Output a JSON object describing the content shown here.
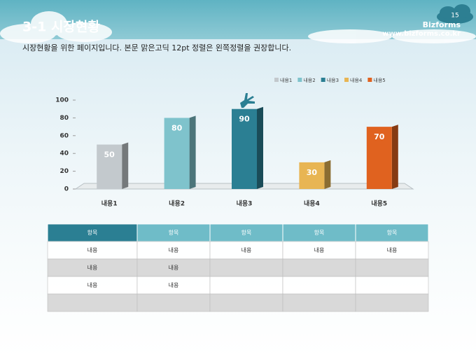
{
  "header": {
    "title": "3-1 시장현황",
    "page": "15",
    "brand": "Bizforms",
    "url": "www.bizforms.co.kr"
  },
  "subtitle": "시장현황을 위한 페이지입니다. 본문 맑은고딕 12pt 정렬은 왼쪽정렬을 권장합니다.",
  "chart_data": {
    "type": "bar",
    "categories": [
      "내용1",
      "내용2",
      "내용3",
      "내용4",
      "내용5"
    ],
    "values": [
      50,
      80,
      90,
      30,
      70
    ],
    "colors": [
      "#c3c9cd",
      "#7fc3cc",
      "#2b7f93",
      "#e8b553",
      "#e0621f"
    ],
    "ylim": [
      0,
      100
    ],
    "yticks": [
      0,
      20,
      40,
      60,
      80,
      100
    ],
    "legend": "top-right"
  },
  "table": {
    "header": [
      "항목",
      "항목",
      "항목",
      "항목",
      "항목"
    ],
    "rows": [
      [
        "내용",
        "내용",
        "내용",
        "내용",
        "내용"
      ],
      [
        "내용",
        "내용",
        null,
        null,
        null
      ],
      [
        "내용",
        "내용",
        null,
        null,
        null
      ],
      [
        null,
        null,
        null,
        null,
        null
      ]
    ]
  }
}
